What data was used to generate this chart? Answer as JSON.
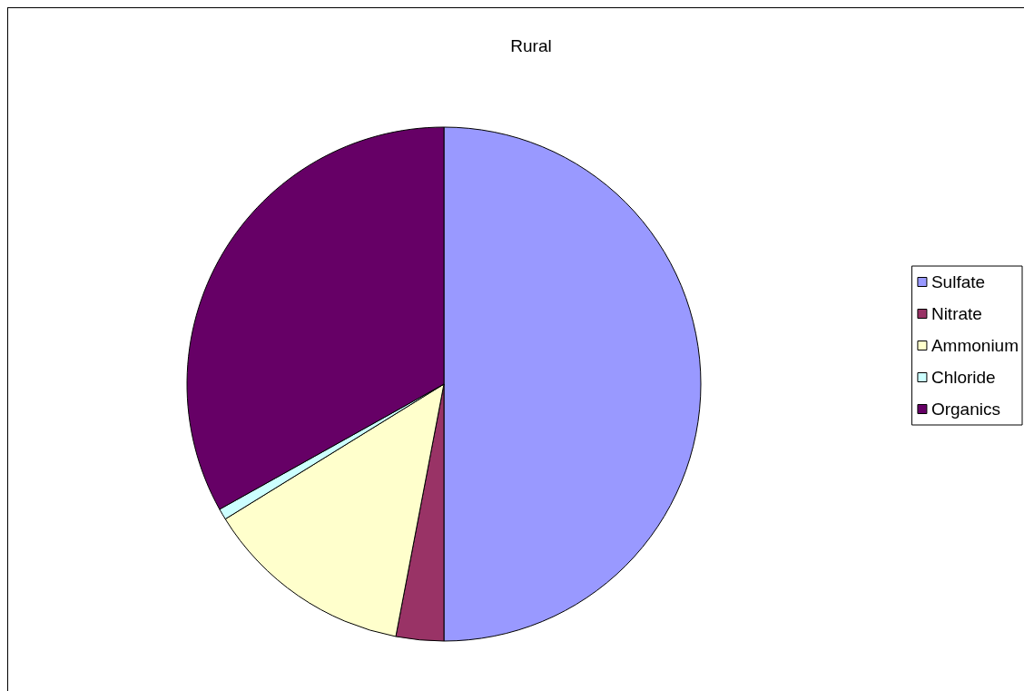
{
  "chart_data": {
    "type": "pie",
    "title": "Rural",
    "categories": [
      "Sulfate",
      "Nitrate",
      "Ammonium",
      "Chloride",
      "Organics"
    ],
    "values": [
      50,
      3,
      13.2,
      0.7,
      33.1
    ],
    "colors": [
      "#9999ff",
      "#993366",
      "#ffffcc",
      "#ccffff",
      "#660066"
    ],
    "legend": "right"
  }
}
